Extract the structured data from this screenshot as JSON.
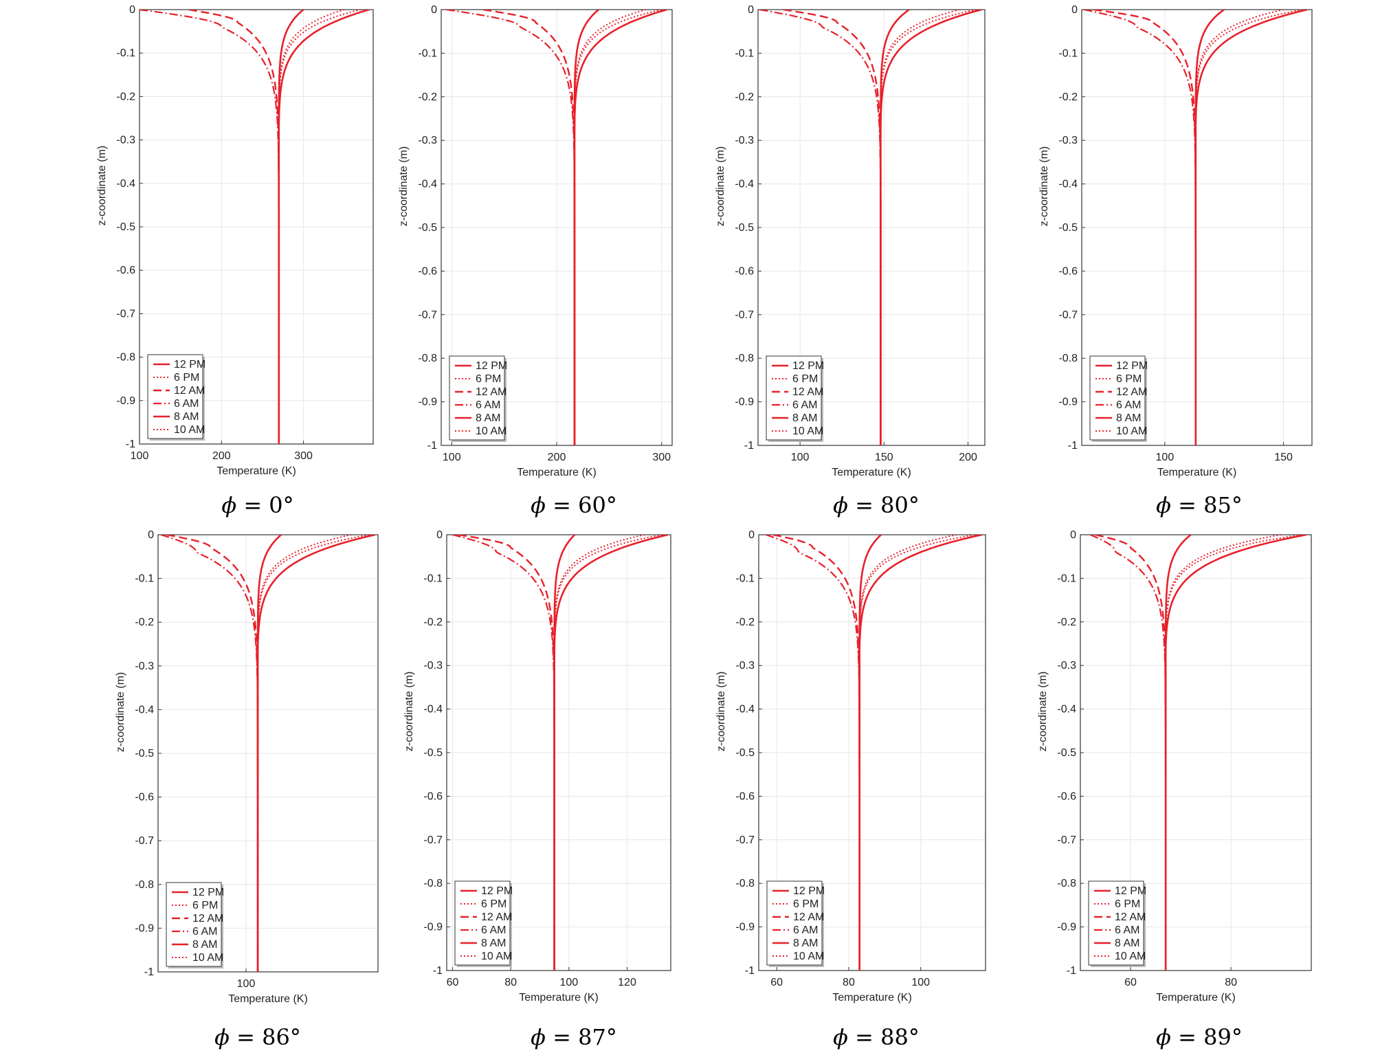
{
  "figure": {
    "line_color": "#e8202a",
    "legend_times": [
      "12 PM",
      "6 PM",
      "12 AM",
      "6 AM",
      "8 AM",
      "10 AM"
    ],
    "legend_styles": [
      "solid",
      "dotted",
      "dashed",
      "dashdot",
      "solid",
      "dotted"
    ],
    "ylabel": "z-coordinate (m)",
    "xlabel": "Temperature (K)",
    "caption_prefix": "ϕ = "
  },
  "chart_data": [
    {
      "type": "line",
      "caption": "0°",
      "xlim": [
        100,
        385
      ],
      "xticks": [
        100,
        200,
        300
      ],
      "ylim": [
        -1,
        0
      ],
      "yticks": [
        "0",
        "-0.1",
        "-0.2",
        "-0.3",
        "-0.4",
        "-0.5",
        "-0.6",
        "-0.7",
        "-0.8",
        "-0.9",
        "-1"
      ],
      "deep_temperature": 270,
      "surface_temperatures": {
        "12 PM": 380,
        "6 PM": 350,
        "12 AM": 160,
        "6 AM": 100,
        "8 AM": 300,
        "10 AM": 370
      },
      "near_surface_minimum": {
        "12 AM": [
          220,
          -0.03
        ],
        "6 AM": [
          200,
          -0.04
        ]
      }
    },
    {
      "type": "line",
      "caption": "60°",
      "xlim": [
        90,
        310
      ],
      "xticks": [
        100,
        200,
        300
      ],
      "ylim": [
        -1,
        0
      ],
      "yticks": [
        "0",
        "-0.1",
        "-0.2",
        "-0.3",
        "-0.4",
        "-0.5",
        "-0.6",
        "-0.7",
        "-0.8",
        "-0.9",
        "-1"
      ],
      "deep_temperature": 217,
      "surface_temperatures": {
        "12 PM": 305,
        "6 PM": 285,
        "12 AM": 130,
        "6 AM": 95,
        "8 AM": 240,
        "10 AM": 300
      },
      "near_surface_minimum": {
        "12 AM": [
          180,
          -0.03
        ],
        "6 AM": [
          165,
          -0.04
        ]
      }
    },
    {
      "type": "line",
      "caption": "80°",
      "xlim": [
        75,
        210
      ],
      "xticks": [
        100,
        150,
        200
      ],
      "ylim": [
        -1,
        0
      ],
      "yticks": [
        "0",
        "-0.1",
        "-0.2",
        "-0.3",
        "-0.4",
        "-0.5",
        "-0.6",
        "-0.7",
        "-0.8",
        "-0.9",
        "-1"
      ],
      "deep_temperature": 148,
      "surface_temperatures": {
        "12 PM": 208,
        "6 PM": 195,
        "12 AM": 90,
        "6 AM": 76,
        "8 AM": 165,
        "10 AM": 205
      },
      "near_surface_minimum": {
        "12 AM": [
          122,
          -0.03
        ],
        "6 AM": [
          113,
          -0.04
        ]
      }
    },
    {
      "type": "line",
      "caption": "85°",
      "xlim": [
        65,
        162
      ],
      "xticks": [
        100,
        150
      ],
      "ylim": [
        -1,
        0
      ],
      "yticks": [
        "0",
        "-0.1",
        "-0.2",
        "-0.3",
        "-0.4",
        "-0.5",
        "-0.6",
        "-0.7",
        "-0.8",
        "-0.9",
        "-1"
      ],
      "deep_temperature": 113,
      "surface_temperatures": {
        "12 PM": 160,
        "6 PM": 150,
        "12 AM": 70,
        "6 AM": 66,
        "8 AM": 125,
        "10 AM": 158
      },
      "near_surface_minimum": {
        "12 AM": [
          95,
          -0.03
        ],
        "6 AM": [
          88,
          -0.04
        ]
      }
    },
    {
      "type": "line",
      "caption": "86°",
      "xlim": [
        70,
        145
      ],
      "xticks": [
        100
      ],
      "ylim": [
        -1,
        0
      ],
      "yticks": [
        "0",
        "-0.1",
        "-0.2",
        "-0.3",
        "-0.4",
        "-0.5",
        "-0.6",
        "-0.7",
        "-0.8",
        "-0.9",
        "-1"
      ],
      "deep_temperature": 104,
      "surface_temperatures": {
        "12 PM": 144,
        "6 PM": 136,
        "12 AM": 73,
        "6 AM": 71,
        "8 AM": 112,
        "10 AM": 142
      },
      "near_surface_minimum": {
        "12 AM": [
          88,
          -0.03
        ],
        "6 AM": [
          83,
          -0.04
        ]
      }
    },
    {
      "type": "line",
      "caption": "87°",
      "xlim": [
        58,
        135
      ],
      "xticks": [
        60,
        80,
        100,
        120
      ],
      "ylim": [
        -1,
        0
      ],
      "yticks": [
        "0",
        "-0.1",
        "-0.2",
        "-0.3",
        "-0.4",
        "-0.5",
        "-0.6",
        "-0.7",
        "-0.8",
        "-0.9",
        "-1"
      ],
      "deep_temperature": 95,
      "surface_temperatures": {
        "12 PM": 134,
        "6 PM": 126,
        "12 AM": 62,
        "6 AM": 60,
        "8 AM": 102,
        "10 AM": 132
      },
      "near_surface_minimum": {
        "12 AM": [
          80,
          -0.03
        ],
        "6 AM": [
          75,
          -0.04
        ]
      }
    },
    {
      "type": "line",
      "caption": "88°",
      "xlim": [
        55,
        118
      ],
      "xticks": [
        60,
        80,
        100
      ],
      "ylim": [
        -1,
        0
      ],
      "yticks": [
        "0",
        "-0.1",
        "-0.2",
        "-0.3",
        "-0.4",
        "-0.5",
        "-0.6",
        "-0.7",
        "-0.8",
        "-0.9",
        "-1"
      ],
      "deep_temperature": 83,
      "surface_temperatures": {
        "12 PM": 117,
        "6 PM": 110,
        "12 AM": 59,
        "6 AM": 57,
        "8 AM": 89,
        "10 AM": 115
      },
      "near_surface_minimum": {
        "12 AM": [
          70,
          -0.03
        ],
        "6 AM": [
          66,
          -0.04
        ]
      }
    },
    {
      "type": "line",
      "caption": "89°",
      "xlim": [
        50,
        96
      ],
      "xticks": [
        60,
        80
      ],
      "ylim": [
        -1,
        0
      ],
      "yticks": [
        "0",
        "-0.1",
        "-0.2",
        "-0.3",
        "-0.4",
        "-0.5",
        "-0.6",
        "-0.7",
        "-0.8",
        "-0.9",
        "-1"
      ],
      "deep_temperature": 67,
      "surface_temperatures": {
        "12 PM": 95,
        "6 PM": 90,
        "12 AM": 53,
        "6 AM": 52,
        "8 AM": 72,
        "10 AM": 94
      },
      "near_surface_minimum": {
        "12 AM": [
          60,
          -0.03
        ],
        "6 AM": [
          57,
          -0.04
        ]
      }
    }
  ]
}
